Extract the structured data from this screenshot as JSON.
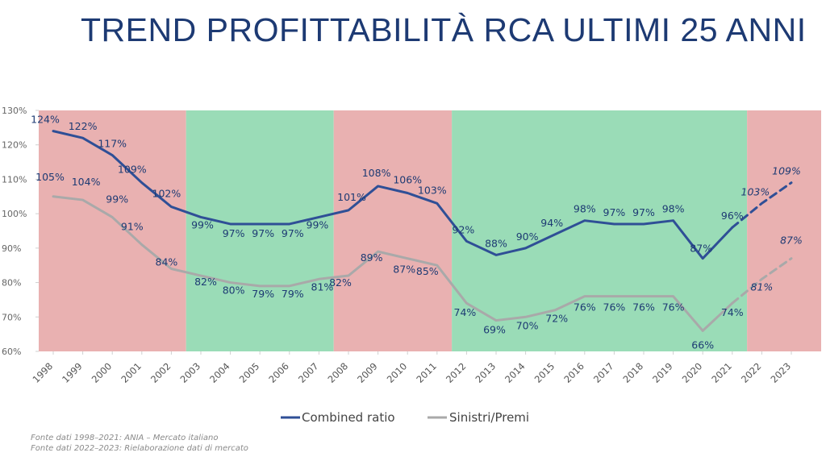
{
  "title": "TREND PROFITTABILITÀ RCA ULTIMI 25 ANNI",
  "colors": {
    "title": "#1d3a73",
    "combined": "#2f4f96",
    "sinistri": "#a9a9a9",
    "band_red": "#e9b1b1",
    "band_green": "#9adcb7"
  },
  "chart_data": {
    "type": "line",
    "x": [
      "1998",
      "1999",
      "2000",
      "2001",
      "2002",
      "2003",
      "2004",
      "2005",
      "2006",
      "2007",
      "2008",
      "2009",
      "2010",
      "2011",
      "2012",
      "2013",
      "2014",
      "2015",
      "2016",
      "2017",
      "2018",
      "2019",
      "2020",
      "2021",
      "2022",
      "2023"
    ],
    "series": [
      {
        "name": "Combined ratio",
        "values": [
          124,
          122,
          117,
          109,
          102,
          99,
          97,
          97,
          97,
          99,
          101,
          108,
          106,
          103,
          92,
          88,
          90,
          94,
          98,
          97,
          97,
          98,
          87,
          96,
          103,
          109
        ],
        "labels": [
          "124%",
          "122%",
          "117%",
          "109%",
          "102%",
          "99%",
          "97%",
          "97%",
          "97%",
          "99%",
          "101%",
          "108%",
          "106%",
          "103%",
          "92%",
          "88%",
          "90%",
          "94%",
          "98%",
          "97%",
          "97%",
          "98%",
          "87%",
          "96%",
          "103%",
          "109%"
        ],
        "estimated_from": "2022"
      },
      {
        "name": "Sinistri/Premi",
        "values": [
          105,
          104,
          99,
          91,
          84,
          82,
          80,
          79,
          79,
          81,
          82,
          89,
          87,
          85,
          74,
          69,
          70,
          72,
          76,
          76,
          76,
          76,
          66,
          74,
          81,
          87
        ],
        "labels": [
          "105%",
          "104%",
          "99%",
          "91%",
          "84%",
          "82%",
          "80%",
          "79%",
          "79%",
          "81%",
          "82%",
          "89%",
          "87%",
          "85%",
          "74%",
          "69%",
          "70%",
          "72%",
          "76%",
          "76%",
          "76%",
          "76%",
          "66%",
          "74%",
          "81%",
          "87%"
        ],
        "estimated_from": "2022"
      }
    ],
    "ylim": [
      60,
      130
    ],
    "yticks": [
      "60%",
      "70%",
      "80%",
      "90%",
      "100%",
      "110%",
      "120%",
      "130%"
    ],
    "background_bands": [
      {
        "from": "1998",
        "to": "2002",
        "color": "red"
      },
      {
        "from": "2002",
        "to": "2007",
        "color": "green"
      },
      {
        "from": "2007",
        "to": "2011",
        "color": "red"
      },
      {
        "from": "2011",
        "to": "2021",
        "color": "green"
      },
      {
        "from": "2021",
        "to": "2023",
        "color": "red"
      }
    ],
    "legend": {
      "position": "bottom",
      "items": [
        "Combined ratio",
        "Sinistri/Premi"
      ]
    }
  },
  "source_notes": [
    "Fonte dati 1998–2021: ANIA – Mercato italiano",
    "Fonte dati 2022–2023: Rielaborazione dati di mercato"
  ]
}
